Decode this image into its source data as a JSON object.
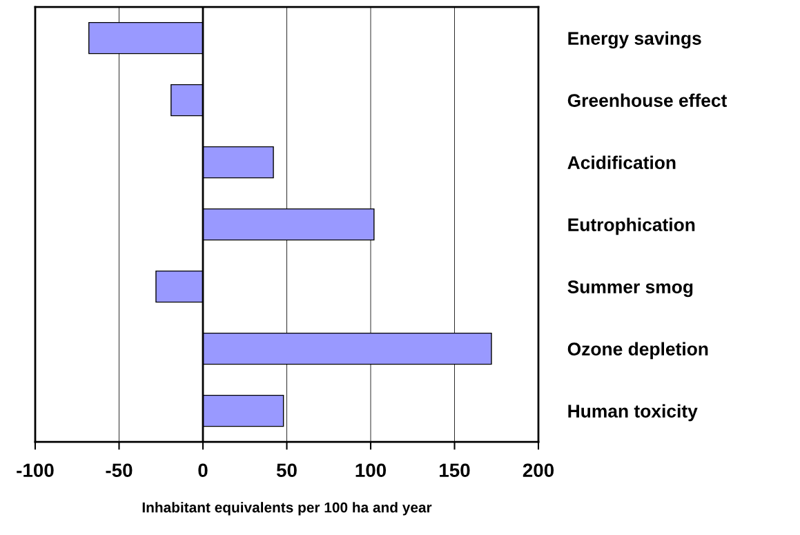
{
  "chart_data": {
    "type": "bar",
    "orientation": "horizontal",
    "xlabel": "Inhabitant equivalents per 100 ha and year",
    "categories": [
      "Energy savings",
      "Greenhouse effect",
      "Acidification",
      "Eutrophication",
      "Summer smog",
      "Ozone depletion",
      "Human toxicity"
    ],
    "values": [
      -68,
      -19,
      42,
      102,
      -28,
      172,
      48
    ],
    "color": "#9999ff",
    "xlim": [
      -100,
      200
    ],
    "xticks": [
      -100,
      -50,
      0,
      50,
      100,
      150,
      200
    ],
    "grid": "x",
    "legend": false
  }
}
